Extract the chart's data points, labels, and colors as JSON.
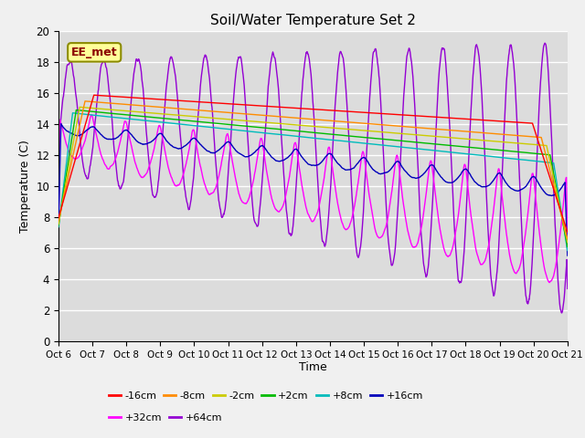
{
  "title": "Soil/Water Temperature Set 2",
  "xlabel": "Time",
  "ylabel": "Temperature (C)",
  "ylim": [
    0,
    20
  ],
  "xlim": [
    0,
    15
  ],
  "x_tick_labels": [
    "Oct 6",
    "Oct 7",
    "Oct 8",
    "Oct 9",
    "Oct 10",
    "Oct 11",
    "Oct 12",
    "Oct 13",
    "Oct 14",
    "Oct 15",
    "Oct 16",
    "Oct 17",
    "Oct 18",
    "Oct 19",
    "Oct 20",
    "Oct 21"
  ],
  "annotation_text": "EE_met",
  "annotation_color": "#8B0000",
  "annotation_bg": "#FFFF99",
  "fig_bg": "#F0F0F0",
  "plot_bg": "#DCDCDC",
  "grid_color": "#FFFFFF",
  "series": [
    {
      "label": "-16cm",
      "color": "#FF0000"
    },
    {
      "label": "-8cm",
      "color": "#FF8C00"
    },
    {
      "label": "-2cm",
      "color": "#CCCC00"
    },
    {
      "label": "+2cm",
      "color": "#00BB00"
    },
    {
      "label": "+8cm",
      "color": "#00BBBB"
    },
    {
      "label": "+16cm",
      "color": "#0000BB"
    },
    {
      "label": "+32cm",
      "color": "#FF00FF"
    },
    {
      "label": "+64cm",
      "color": "#9400D3"
    }
  ]
}
